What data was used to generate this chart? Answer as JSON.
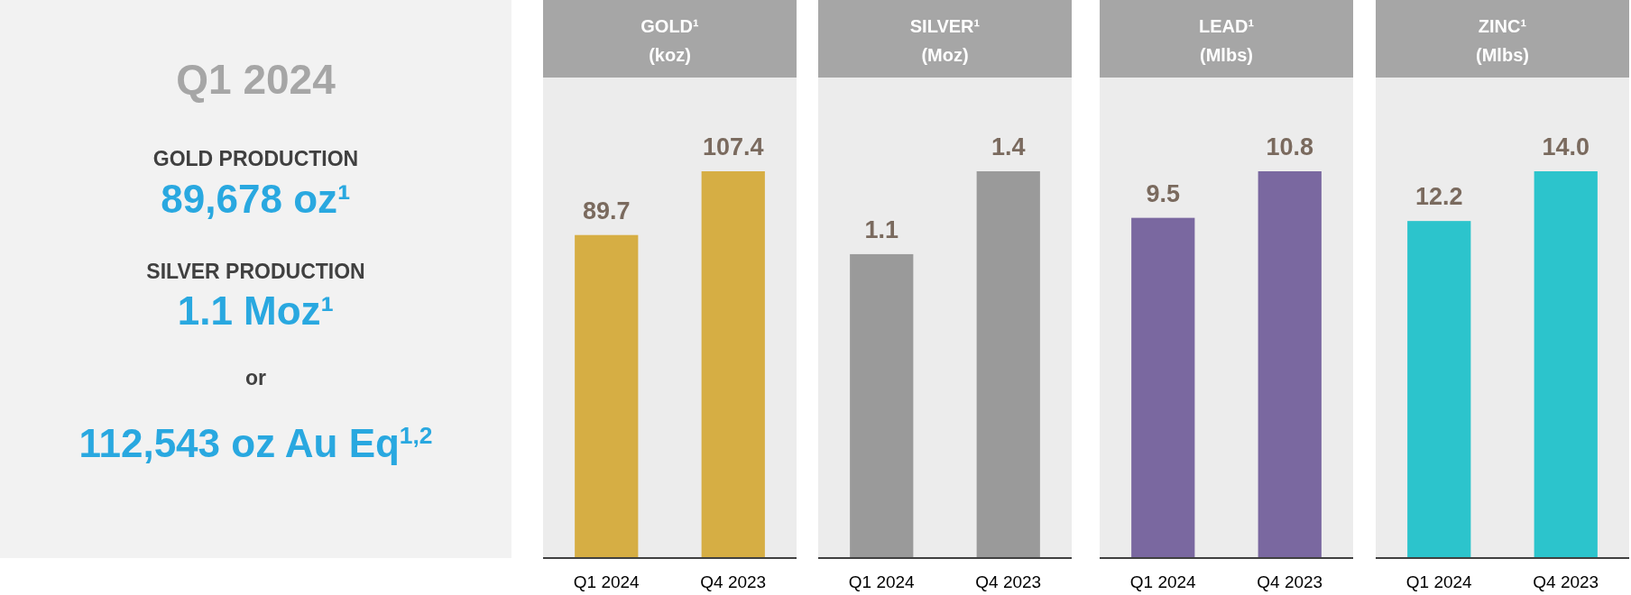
{
  "chart_data": [
    {
      "type": "other",
      "title": "Q1 2024",
      "annotations": [
        "GOLD PRODUCTION",
        "89,678 oz¹",
        "SILVER PRODUCTION",
        "1.1 Moz¹",
        "or",
        "112,543 oz Au Eq$^{1,2}$"
      ]
    },
    {
      "type": "bar",
      "title": "GOLD¹",
      "subtitle": "(koz)",
      "categories": [
        "Q1 2024",
        "Q4 2023"
      ],
      "values": [
        89.7,
        107.4
      ],
      "color": "#d6ae44",
      "data_labels": true
    },
    {
      "type": "bar",
      "title": "SILVER¹",
      "subtitle": "(Moz)",
      "categories": [
        "Q1 2024",
        "Q4 2023"
      ],
      "values": [
        1.1,
        1.4
      ],
      "color": "#9a9a9a",
      "data_labels": true
    },
    {
      "type": "bar",
      "title": "LEAD¹",
      "subtitle": "(Mlbs)",
      "categories": [
        "Q1 2024",
        "Q4 2023"
      ],
      "values": [
        9.5,
        10.8
      ],
      "color": "#7a68a0",
      "data_labels": true
    },
    {
      "type": "bar",
      "title": "ZINC¹",
      "subtitle": "(Mlbs)",
      "categories": [
        "Q1 2024",
        "Q4 2023"
      ],
      "values": [
        12.2,
        14.0
      ],
      "color": "#2cc4cc",
      "value_labels": [
        "12.2",
        "14.0"
      ]
    }
  ]
}
